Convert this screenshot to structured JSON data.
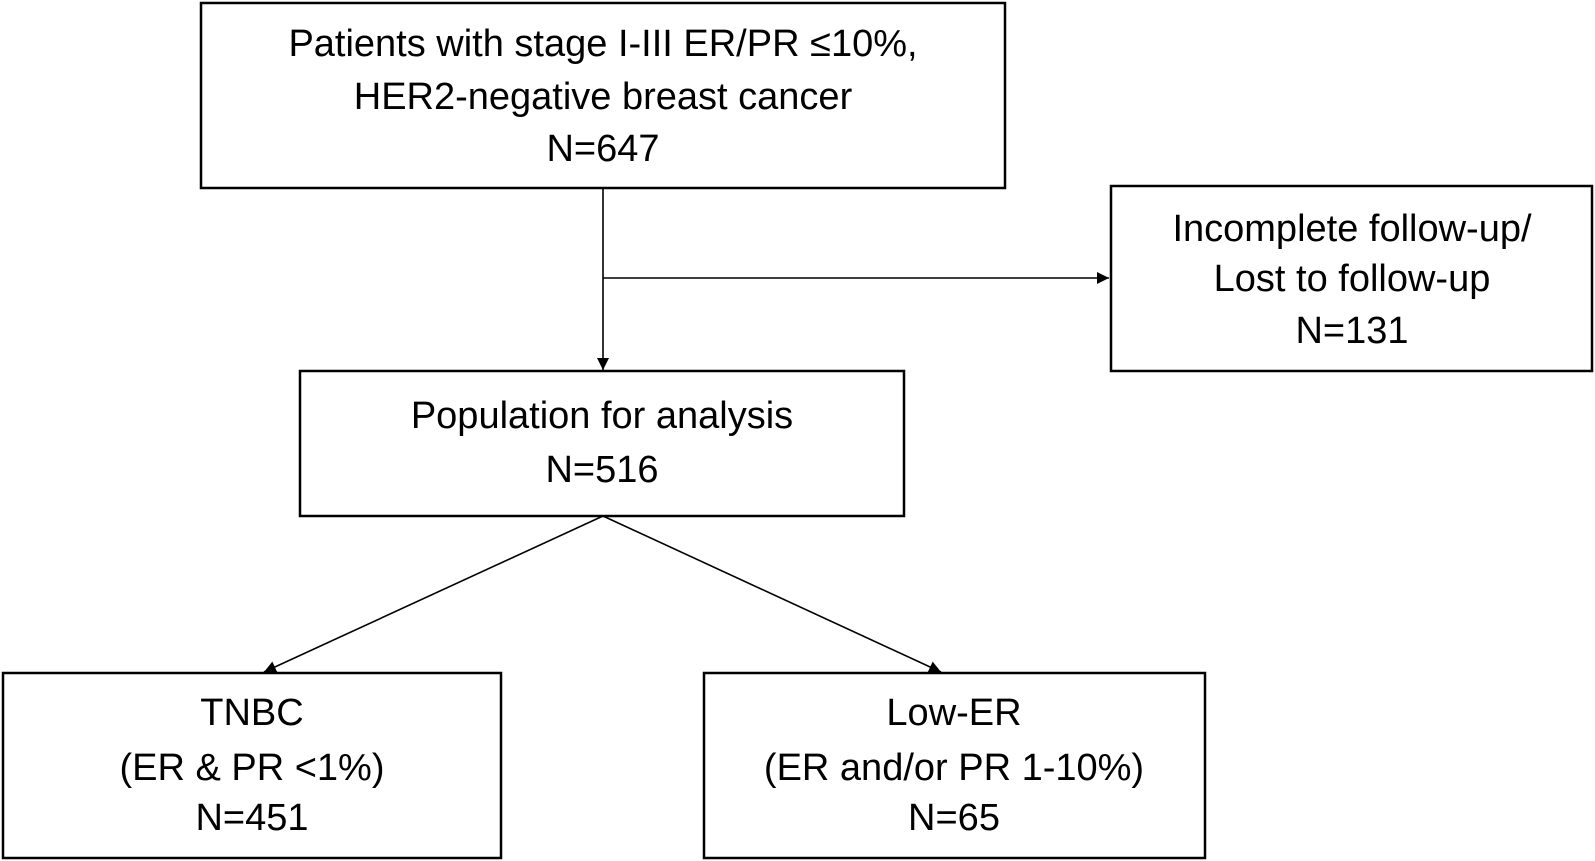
{
  "nodes": [
    {
      "lines": [
        "Patients with stage I-III ER/PR ≤10%,",
        "HER2-negative breast cancer",
        "N=647"
      ]
    },
    {
      "lines": [
        "Incomplete follow-up/",
        "Lost to follow-up",
        "N=131"
      ]
    },
    {
      "lines": [
        "Population for analysis",
        "N=516"
      ]
    },
    {
      "lines": [
        "TNBC",
        "(ER & PR <1%)",
        "N=451"
      ]
    },
    {
      "lines": [
        "Low-ER",
        "(ER and/or PR 1-10%)",
        "N=65"
      ]
    }
  ]
}
